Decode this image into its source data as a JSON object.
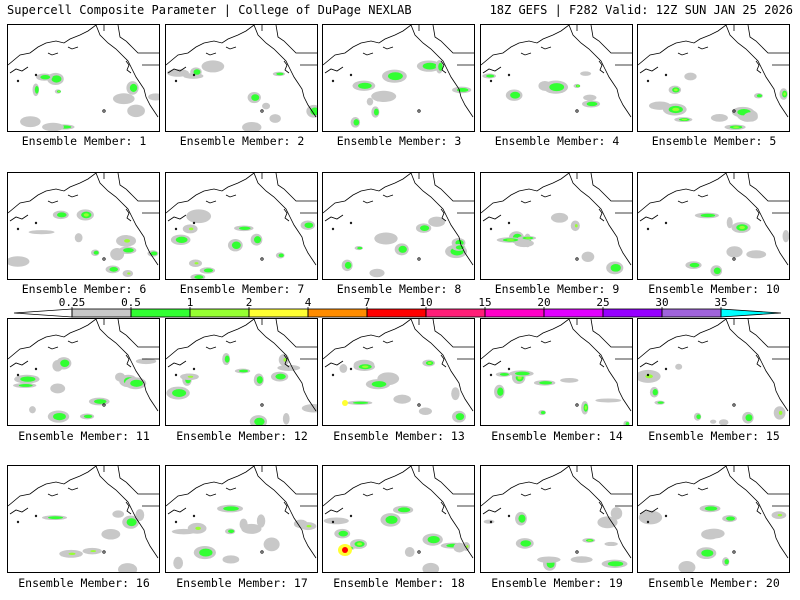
{
  "header": {
    "left_title": "Supercell Composite Parameter | College of DuPage NEXLAB",
    "right_title": "18Z GEFS | F282 Valid: 12Z SUN JAN 25 2026"
  },
  "panel_label_prefix": "Ensemble Member:",
  "members": [
    1,
    2,
    3,
    4,
    5,
    6,
    7,
    8,
    9,
    10,
    11,
    12,
    13,
    14,
    15,
    16,
    17,
    18,
    19,
    20
  ],
  "colorbar": {
    "ticks": [
      "0.25",
      "0.5",
      "1",
      "2",
      "4",
      "7",
      "10",
      "15",
      "20",
      "25",
      "30",
      "35"
    ],
    "colors": [
      "#c8c8c8",
      "#32ff32",
      "#96ff32",
      "#ffff32",
      "#ff8c00",
      "#ff0000",
      "#ff1e78",
      "#ff00c8",
      "#e100ff",
      "#9600ff",
      "#a064dc",
      "#00ffff"
    ]
  },
  "map_colors": {
    "land_line": "#000000",
    "shade_light": "#c8c8c8",
    "shade_green": "#32ff32",
    "shade_lime": "#96ff32",
    "shade_yellow": "#ffff32",
    "shade_red": "#ff0000"
  }
}
